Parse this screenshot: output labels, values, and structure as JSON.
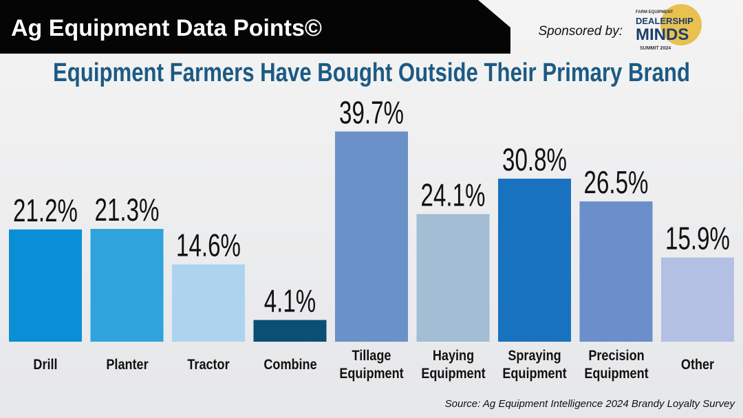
{
  "chart_data": {
    "type": "bar",
    "header": "Ag Equipment Data Points©",
    "sponsor_label": "Sponsored by:",
    "logo": {
      "top": "FARM EQUIPMENT",
      "name1": "DEALERSHIP",
      "name2": "MINDS",
      "sub": "SUMMIT 2024"
    },
    "title": "Equipment Farmers Have Bought Outside Their Primary Brand",
    "categories": [
      "Drill",
      "Planter",
      "Tractor",
      "Combine",
      "Tillage Equipment",
      "Haying Equipment",
      "Spraying Equipment",
      "Precision Equipment",
      "Other"
    ],
    "values": [
      21.2,
      21.3,
      14.6,
      4.1,
      39.7,
      24.1,
      30.8,
      26.5,
      15.9
    ],
    "value_labels": [
      "21.2%",
      "21.3%",
      "14.6%",
      "4.1%",
      "39.7%",
      "24.1%",
      "30.8%",
      "26.5%",
      "15.9%"
    ],
    "colors": [
      "#0a8fd6",
      "#2ea3dc",
      "#aed3ef",
      "#0a4f74",
      "#6a91c8",
      "#a2bdd4",
      "#1972c0",
      "#6b8fcb",
      "#b3c0e4"
    ],
    "source": "Source: Ag Equipment Intelligence 2024 Brandy Loyalty Survey"
  }
}
